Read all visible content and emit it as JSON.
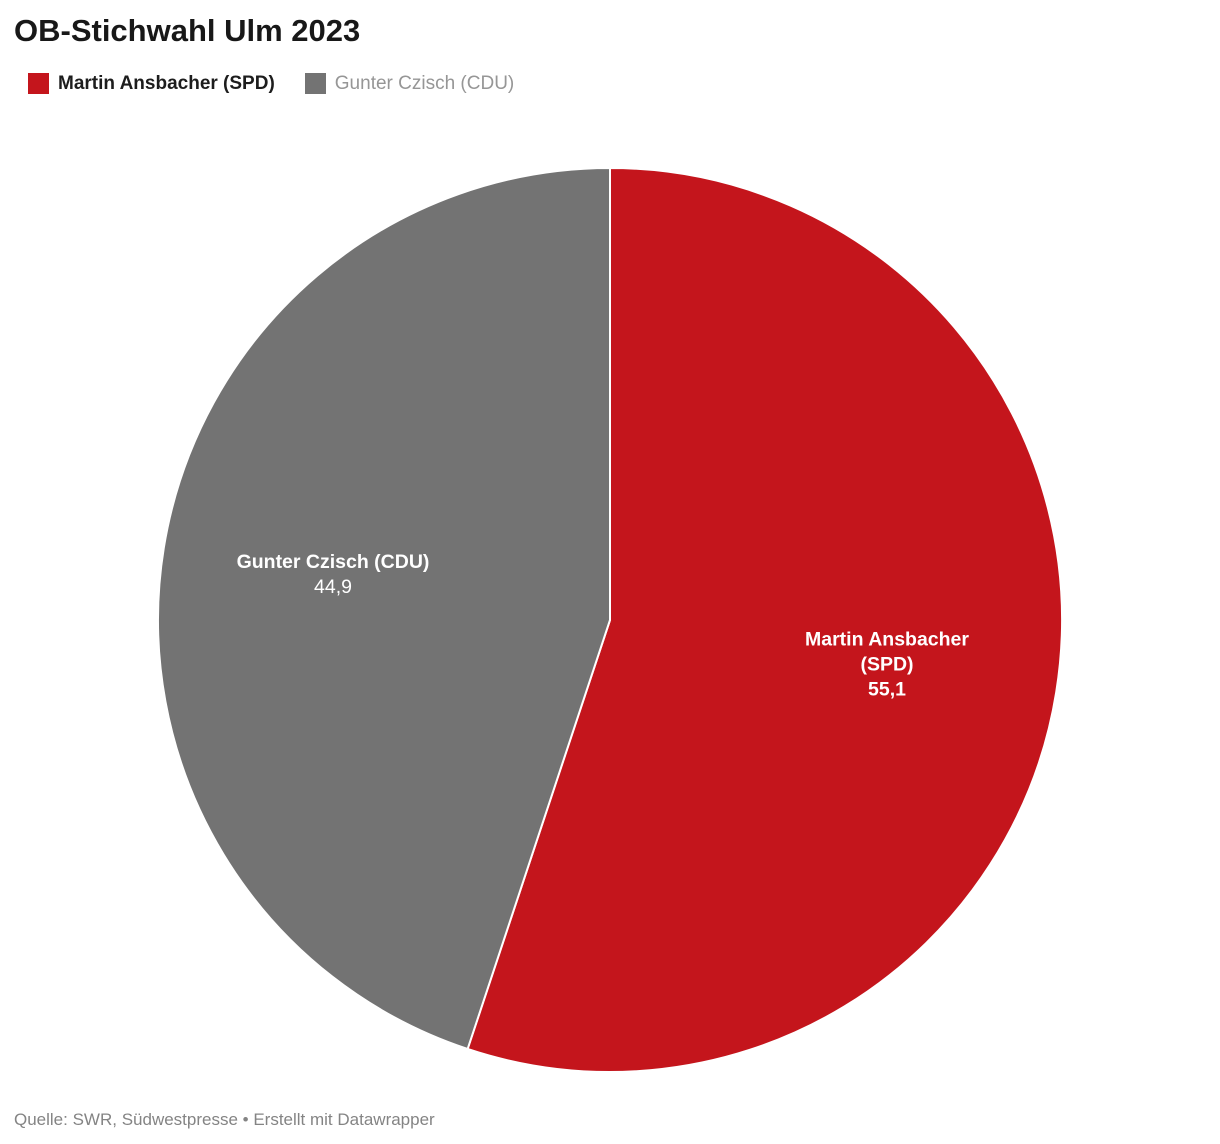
{
  "title": "OB-Stichwahl Ulm 2023",
  "footer": "Quelle: SWR, Südwestpresse • Erstellt mit Datawrapper",
  "colors": {
    "spd_red": "#c4151c",
    "cdu_gray": "#737373",
    "background": "#ffffff",
    "label_text": "#ffffff"
  },
  "legend": {
    "position": "top",
    "items": [
      {
        "label": "Martin Ansbacher (SPD)",
        "color": "#c4151c"
      },
      {
        "label": "Gunter Czisch (CDU)",
        "color": "#737373"
      }
    ]
  },
  "chart_data": {
    "type": "pie",
    "title": "OB-Stichwahl Ulm 2023",
    "start_angle_deg": 0,
    "direction": "clockwise",
    "legend_position": "top",
    "slices": [
      {
        "label": "Martin Ansbacher (SPD)",
        "value": 55.1,
        "display_value": "55,1",
        "color": "#c4151c",
        "label_lines": [
          "Martin Ansbacher",
          "(SPD)"
        ]
      },
      {
        "label": "Gunter Czisch (CDU)",
        "value": 44.9,
        "display_value": "44,9",
        "color": "#737373",
        "label_lines": [
          "Gunter Czisch (CDU)"
        ]
      }
    ]
  }
}
